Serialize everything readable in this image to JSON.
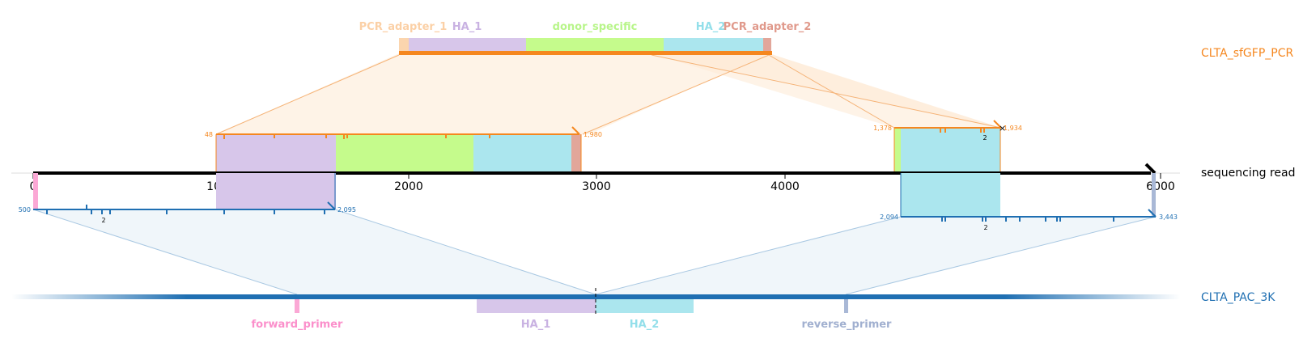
{
  "colors": {
    "pcr": "#f5871f",
    "pcr_fill": "#fdebd7",
    "pac": "#1f6fb2",
    "pac_fill": "#e2eef6",
    "read": "#000000",
    "PCR_adapter_1": "#fbd5ae",
    "HA_1": "#d7c6ea",
    "donor_specific": "#c5fb8c",
    "HA_2": "#abe6ee",
    "PCR_adapter_2": "#e2a69a",
    "forward_primer": "#fba8d5",
    "reverse_primer": "#a9b8d6",
    "label_PCR_adapter_1": "#fbd0a6",
    "label_HA_1": "#c9b2e2",
    "label_donor_specific": "#b8f58a",
    "label_HA_2": "#93dfea",
    "label_PCR_adapter_2": "#e0998b",
    "label_forward_primer": "#fb8fcb",
    "label_reverse_primer": "#a1b0d0"
  },
  "tracks": {
    "pcr_label": "CLTA_sfGFP_PCR",
    "read_label": "sequencing read",
    "pac_label": "CLTA_PAC_3K"
  },
  "read_axis": {
    "ticks": [
      "0",
      "1000",
      "2000",
      "3000",
      "4000",
      "5000",
      "6000"
    ]
  },
  "pcr_features": {
    "labels": [
      "PCR_adapter_1",
      "HA_1",
      "donor_specific",
      "HA_2",
      "PCR_adapter_2"
    ]
  },
  "pac_features": {
    "labels": [
      "forward_primer",
      "HA_1",
      "HA_2",
      "reverse_primer"
    ]
  },
  "alignments": {
    "pcr_left": {
      "start": "48",
      "end": "1,980"
    },
    "pcr_right": {
      "start": "1,378",
      "end": "1,934",
      "count": "2"
    },
    "pac_left": {
      "start": "500",
      "end": "2,095",
      "count": "2"
    },
    "pac_right": {
      "start": "2,094",
      "end": "3,443",
      "count": "2"
    }
  }
}
